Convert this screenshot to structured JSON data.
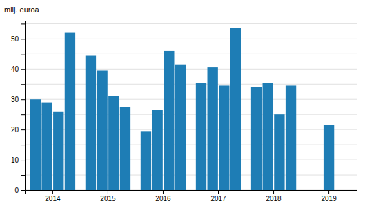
{
  "chart_data": {
    "type": "bar",
    "ylabel": "milj. euroa",
    "categories": [
      "2014",
      "2015",
      "2016",
      "2017",
      "2018",
      "2019"
    ],
    "color": "#1e7db5",
    "series": [
      {
        "values": [
          30.0,
          44.5,
          19.5,
          35.5,
          34.0,
          21.5
        ]
      },
      {
        "values": [
          29.0,
          39.5,
          26.5,
          40.5,
          35.5,
          null
        ]
      },
      {
        "values": [
          26.0,
          31.0,
          46.0,
          34.5,
          25.0,
          null
        ]
      },
      {
        "values": [
          52.0,
          27.5,
          41.5,
          53.5,
          34.5,
          null
        ]
      }
    ],
    "ylim": [
      0,
      56
    ],
    "yticks": [
      0,
      {
        "value": 5,
        "label": null
      },
      10,
      {
        "value": 15,
        "label": null
      },
      20,
      {
        "value": 25,
        "label": null
      },
      30,
      {
        "value": 35,
        "label": null
      },
      40,
      {
        "value": 45,
        "label": null
      },
      50,
      {
        "value": 55,
        "label": null
      }
    ],
    "grid": true
  }
}
